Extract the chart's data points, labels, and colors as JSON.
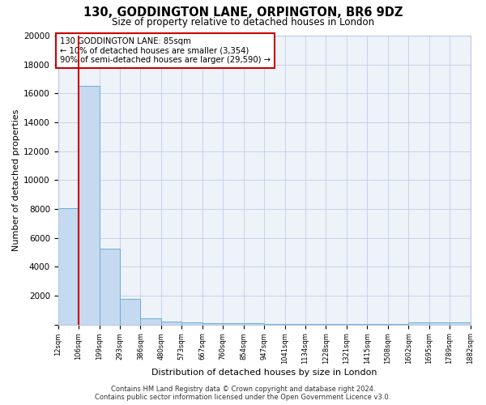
{
  "title_line1": "130, GODDINGTON LANE, ORPINGTON, BR6 9DZ",
  "title_line2": "Size of property relative to detached houses in London",
  "xlabel": "Distribution of detached houses by size in London",
  "ylabel": "Number of detached properties",
  "tick_labels": [
    "12sqm",
    "106sqm",
    "199sqm",
    "293sqm",
    "386sqm",
    "480sqm",
    "573sqm",
    "667sqm",
    "760sqm",
    "854sqm",
    "947sqm",
    "1041sqm",
    "1134sqm",
    "1228sqm",
    "1321sqm",
    "1415sqm",
    "1508sqm",
    "1602sqm",
    "1695sqm",
    "1789sqm",
    "1882sqm"
  ],
  "bar_heights": [
    8050,
    16500,
    5250,
    1800,
    450,
    200,
    150,
    100,
    100,
    80,
    60,
    60,
    50,
    50,
    40,
    40,
    40,
    150,
    150,
    150
  ],
  "bar_color": "#c5d9f0",
  "bar_edge_color": "#6aaed6",
  "vline_pos": 1,
  "vline_color": "#cc0000",
  "annotation_text": "130 GODDINGTON LANE: 85sqm\n← 10% of detached houses are smaller (3,354)\n90% of semi-detached houses are larger (29,590) →",
  "annotation_box_color": "#ffffff",
  "annotation_box_edge": "#cc0000",
  "ylim": [
    0,
    20000
  ],
  "yticks": [
    0,
    2000,
    4000,
    6000,
    8000,
    10000,
    12000,
    14000,
    16000,
    18000,
    20000
  ],
  "footer_text": "Contains HM Land Registry data © Crown copyright and database right 2024.\nContains public sector information licensed under the Open Government Licence v3.0.",
  "bg_color": "#eef2f9",
  "plot_bg_color": "#eef2f9",
  "n_bins": 20
}
